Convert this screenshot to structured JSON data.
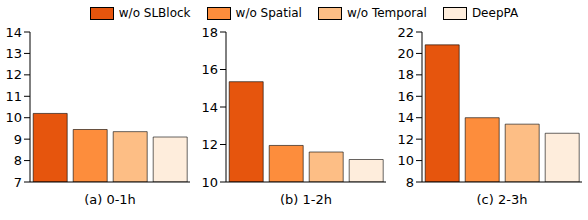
{
  "chart_data": [
    {
      "type": "bar",
      "xlabel": "(a) 0-1h",
      "legend": "top",
      "categories": [
        "w/o SLBlock",
        "w/o Spatial",
        "w/o Temporal",
        "DeepPA"
      ],
      "values": [
        10.2,
        9.45,
        9.35,
        9.1
      ],
      "colors": [
        "#e6550d",
        "#fd8d3c",
        "#fdbe85",
        "#feeddc"
      ],
      "ylim": [
        7,
        14
      ],
      "yticks": [
        7,
        8,
        9,
        10,
        11,
        12,
        13,
        14
      ],
      "tick_labels": "y"
    },
    {
      "type": "bar",
      "xlabel": "(b) 1-2h",
      "categories": [
        "w/o SLBlock",
        "w/o Spatial",
        "w/o Temporal",
        "DeepPA"
      ],
      "values": [
        15.35,
        11.95,
        11.6,
        11.2
      ],
      "colors": [
        "#e6550d",
        "#fd8d3c",
        "#fdbe85",
        "#feeddc"
      ],
      "ylim": [
        10,
        18
      ],
      "yticks": [
        10,
        12,
        14,
        16,
        18
      ],
      "tick_labels": "y"
    },
    {
      "type": "bar",
      "xlabel": "(c) 2-3h",
      "categories": [
        "w/o SLBlock",
        "w/o Spatial",
        "w/o Temporal",
        "DeepPA"
      ],
      "values": [
        20.8,
        14.0,
        13.4,
        12.55
      ],
      "colors": [
        "#e6550d",
        "#fd8d3c",
        "#fdbe85",
        "#feeddc"
      ],
      "ylim": [
        8,
        22
      ],
      "yticks": [
        8,
        10,
        12,
        14,
        16,
        18,
        20,
        22
      ],
      "tick_labels": "y"
    }
  ]
}
